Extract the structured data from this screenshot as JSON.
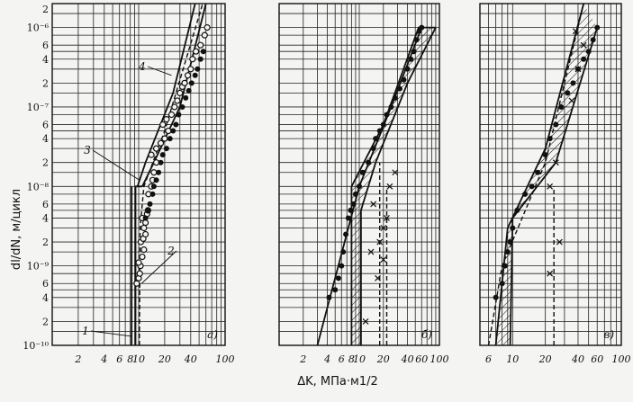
{
  "chart_data": [
    {
      "type": "scatter",
      "panel": "a",
      "panel_label": "а)",
      "xlabel": "ΔK, МПа·м1/2",
      "ylabel": "dl/dN, м/цикл",
      "x_scale": "log",
      "y_scale": "log",
      "xlim": [
        1,
        100
      ],
      "ylim": [
        1e-10,
        2e-06
      ],
      "x_ticks": [
        2,
        4,
        6,
        8,
        10,
        20,
        40,
        100
      ],
      "x_tick_labels": [
        "2",
        "4",
        "6",
        "8",
        "10",
        "20",
        "40",
        "100"
      ],
      "curve_labels": [
        "1",
        "2",
        "3",
        "4"
      ],
      "series": [
        {
          "name": "",
          "marker": "open-circle",
          "points": [
            [
              9.5,
              6e-10
            ],
            [
              10,
              7e-10
            ],
            [
              10.3,
              8e-10
            ],
            [
              10.5,
              1e-09
            ],
            [
              10,
              1.1e-09
            ],
            [
              11,
              1.3e-09
            ],
            [
              11.5,
              1.6e-09
            ],
            [
              10.6,
              2e-09
            ],
            [
              11.3,
              2.2e-09
            ],
            [
              12,
              2.5e-09
            ],
            [
              11.5,
              3e-09
            ],
            [
              12,
              3.5e-09
            ],
            [
              11,
              4e-09
            ],
            [
              12.5,
              4.5e-09
            ],
            [
              12.8,
              5e-09
            ],
            [
              13,
              8e-09
            ],
            [
              14,
              1e-08
            ],
            [
              14.5,
              1.2e-08
            ],
            [
              15,
              1.5e-08
            ],
            [
              16,
              2e-08
            ],
            [
              14,
              2.5e-08
            ],
            [
              16,
              3e-08
            ],
            [
              18,
              3.5e-08
            ],
            [
              20,
              4e-08
            ],
            [
              22,
              5e-08
            ],
            [
              19,
              6e-08
            ],
            [
              21,
              7e-08
            ],
            [
              24,
              8e-08
            ],
            [
              26,
              1e-07
            ],
            [
              28,
              1.2e-07
            ],
            [
              30,
              1.5e-07
            ],
            [
              32,
              1.8e-07
            ],
            [
              34,
              2e-07
            ],
            [
              37,
              2.5e-07
            ],
            [
              40,
              3e-07
            ],
            [
              42,
              4e-07
            ],
            [
              46,
              5e-07
            ],
            [
              52,
              6e-07
            ],
            [
              58,
              8e-07
            ],
            [
              62,
              1e-06
            ]
          ]
        },
        {
          "name": "",
          "marker": "filled-circle",
          "points": [
            [
              12,
              4e-09
            ],
            [
              13,
              5e-09
            ],
            [
              13.5,
              6e-09
            ],
            [
              14.5,
              8e-09
            ],
            [
              15,
              1e-08
            ],
            [
              16,
              1.2e-08
            ],
            [
              17,
              1.5e-08
            ],
            [
              18,
              2e-08
            ],
            [
              19,
              2.5e-08
            ],
            [
              21,
              3e-08
            ],
            [
              23,
              4e-08
            ],
            [
              25,
              5e-08
            ],
            [
              27,
              6e-08
            ],
            [
              29,
              8e-08
            ],
            [
              32,
              1e-07
            ],
            [
              35,
              1.3e-07
            ],
            [
              38,
              1.6e-07
            ],
            [
              41,
              2e-07
            ],
            [
              45,
              2.5e-07
            ],
            [
              48,
              3e-07
            ],
            [
              52,
              4e-07
            ],
            [
              56,
              5e-07
            ]
          ]
        }
      ],
      "lines": [
        {
          "label": "1",
          "style": "solid",
          "points": [
            [
              8.3,
              1e-10
            ],
            [
              8.3,
              1e-08
            ]
          ]
        },
        {
          "label": "",
          "style": "solid",
          "points": [
            [
              9.2,
              1e-10
            ],
            [
              9.2,
              1e-08
            ],
            [
              11,
              1e-08
            ]
          ]
        },
        {
          "label": "2",
          "style": "dashed",
          "points": [
            [
              10.2,
              1e-10
            ],
            [
              10.4,
              3e-09
            ],
            [
              11.5,
              1e-08
            ],
            [
              20,
              5e-08
            ],
            [
              55,
              2e-06
            ]
          ]
        },
        {
          "label": "3",
          "style": "solid",
          "points": [
            [
              9.7,
              1e-08
            ],
            [
              12,
              2e-08
            ],
            [
              25,
              1.5e-07
            ],
            [
              45,
              2e-06
            ]
          ]
        },
        {
          "label": "4",
          "style": "solid",
          "points": [
            [
              11,
              1e-08
            ],
            [
              15,
              2e-08
            ],
            [
              30,
              1e-07
            ],
            [
              60,
              2e-06
            ]
          ]
        }
      ],
      "grid": true
    },
    {
      "type": "scatter",
      "panel": "b",
      "panel_label": "б)",
      "x_scale": "log",
      "y_scale": "log",
      "xlim": [
        1,
        100
      ],
      "ylim": [
        1e-10,
        2e-06
      ],
      "x_ticks": [
        2,
        4,
        6,
        8,
        10,
        20,
        40,
        60,
        100
      ],
      "x_tick_labels": [
        "2",
        "4",
        "6",
        "8",
        "10",
        "20",
        "40",
        "60",
        "100"
      ],
      "series": [
        {
          "name": "",
          "marker": "filled-circle",
          "points": [
            [
              4.2,
              4e-10
            ],
            [
              5,
              5e-10
            ],
            [
              5.5,
              7e-10
            ],
            [
              6,
              1e-09
            ],
            [
              6.3,
              1.5e-09
            ],
            [
              6.8,
              2.5e-09
            ],
            [
              7.3,
              4e-09
            ],
            [
              7.8,
              5e-09
            ],
            [
              8.5,
              6e-09
            ],
            [
              9,
              8e-09
            ],
            [
              10,
              1e-08
            ],
            [
              11,
              1.5e-08
            ],
            [
              13,
              2e-08
            ],
            [
              15,
              3e-08
            ],
            [
              16,
              4e-08
            ],
            [
              18,
              5e-08
            ],
            [
              20,
              6e-08
            ],
            [
              22,
              8e-08
            ],
            [
              25,
              1e-07
            ],
            [
              28,
              1.3e-07
            ],
            [
              32,
              1.7e-07
            ],
            [
              36,
              2.2e-07
            ],
            [
              40,
              3e-07
            ],
            [
              44,
              4e-07
            ],
            [
              48,
              5e-07
            ],
            [
              52,
              7e-07
            ],
            [
              56,
              9e-07
            ],
            [
              60,
              1e-06
            ]
          ]
        },
        {
          "name": "",
          "marker": "cross",
          "points": [
            [
              14,
              1.5e-09
            ],
            [
              18,
              2e-09
            ],
            [
              20,
              3e-09
            ],
            [
              22,
              4e-09
            ],
            [
              24,
              1e-08
            ],
            [
              28,
              1.5e-08
            ],
            [
              17,
              7e-10
            ],
            [
              20,
              1.2e-09
            ],
            [
              15,
              6e-09
            ],
            [
              12,
              2e-10
            ]
          ]
        }
      ],
      "lines": [
        {
          "label": "",
          "style": "solid",
          "points": [
            [
              3,
              1e-10
            ],
            [
              10,
              1e-08
            ],
            [
              25,
              1e-07
            ],
            [
              60,
              1e-06
            ]
          ]
        },
        {
          "label": "",
          "style": "solid",
          "points": [
            [
              8,
              1e-10
            ],
            [
              8,
              1e-08
            ],
            [
              20,
              6e-08
            ],
            [
              55,
              1e-06
            ],
            [
              90,
              1e-06
            ]
          ]
        },
        {
          "label": "",
          "style": "solid",
          "points": [
            [
              10.5,
              1e-10
            ],
            [
              10.5,
              5e-09
            ],
            [
              16,
              2e-08
            ],
            [
              40,
              2e-07
            ],
            [
              90,
              1e-06
            ]
          ]
        },
        {
          "label": "",
          "style": "dashed",
          "points": [
            [
              18,
              1e-10
            ],
            [
              18,
              2e-08
            ]
          ]
        },
        {
          "label": "",
          "style": "dashed",
          "points": [
            [
              22,
              1e-10
            ],
            [
              22,
              1e-08
            ]
          ]
        }
      ],
      "grid": true
    },
    {
      "type": "scatter",
      "panel": "c",
      "panel_label": "в)",
      "x_scale": "log",
      "y_scale": "log",
      "xlim": [
        5,
        100
      ],
      "ylim": [
        1e-10,
        2e-06
      ],
      "x_ticks": [
        6,
        10,
        20,
        40,
        60,
        100
      ],
      "x_tick_labels": [
        "6",
        "10",
        "20",
        "40",
        "60",
        "100"
      ],
      "series": [
        {
          "name": "",
          "marker": "filled-circle",
          "points": [
            [
              7,
              4e-10
            ],
            [
              8,
              6e-10
            ],
            [
              8.5,
              1e-09
            ],
            [
              9,
              1.5e-09
            ],
            [
              9.5,
              2e-09
            ],
            [
              10,
              3e-09
            ],
            [
              11,
              5e-09
            ],
            [
              13,
              8e-09
            ],
            [
              15,
              1e-08
            ],
            [
              17,
              1.5e-08
            ],
            [
              20,
              2.5e-08
            ],
            [
              22,
              4e-08
            ],
            [
              25,
              6e-08
            ],
            [
              28,
              1e-07
            ],
            [
              32,
              1.5e-07
            ],
            [
              36,
              2e-07
            ],
            [
              40,
              3e-07
            ],
            [
              45,
              4e-07
            ],
            [
              50,
              5e-07
            ],
            [
              55,
              7e-07
            ],
            [
              60,
              1e-06
            ]
          ]
        },
        {
          "name": "",
          "marker": "cross",
          "points": [
            [
              22,
              1e-08
            ],
            [
              25,
              2e-08
            ],
            [
              27,
              2e-09
            ],
            [
              22,
              8e-10
            ],
            [
              35,
              1.2e-07
            ],
            [
              40,
              3e-07
            ],
            [
              45,
              6e-07
            ],
            [
              38,
              9e-07
            ]
          ]
        }
      ],
      "lines": [
        {
          "label": "",
          "style": "solid",
          "points": [
            [
              7,
              1e-10
            ],
            [
              9,
              3e-09
            ],
            [
              20,
              3e-08
            ],
            [
              45,
              2e-06
            ]
          ]
        },
        {
          "label": "",
          "style": "solid",
          "points": [
            [
              9.5,
              1e-10
            ],
            [
              10,
              4e-09
            ],
            [
              25,
              2e-08
            ],
            [
              60,
              1e-06
            ]
          ]
        },
        {
          "label": "",
          "style": "dashed",
          "points": [
            [
              6,
              1e-10
            ],
            [
              8,
              1e-09
            ],
            [
              20,
              2e-08
            ],
            [
              45,
              2e-06
            ]
          ]
        },
        {
          "label": "",
          "style": "dashed",
          "points": [
            [
              24,
              1e-10
            ],
            [
              24,
              1e-08
            ]
          ]
        }
      ],
      "grid": true
    }
  ],
  "y_tick_labels": {
    "major": [
      "10⁻⁶",
      "10⁻⁷",
      "10⁻⁸",
      "10⁻⁹",
      "10⁻¹⁰"
    ],
    "minor": [
      "2",
      "6",
      "4",
      "2"
    ]
  }
}
